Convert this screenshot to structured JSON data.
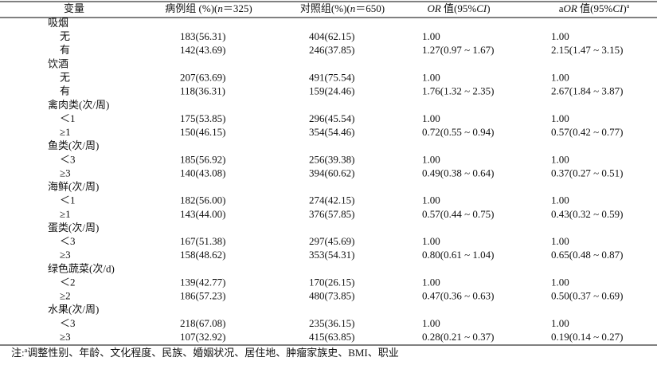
{
  "table": {
    "header": [
      "变量",
      [
        "病例组 (%)(",
        "n",
        "＝325)"
      ],
      [
        "对照组(%)(",
        "n",
        "＝650)"
      ],
      [
        "OR",
        " 值(95%",
        "CI",
        ")"
      ],
      [
        "a",
        "OR",
        " 值(95%",
        "CI",
        ")",
        "a"
      ]
    ],
    "groups": [
      {
        "label": "吸烟",
        "rows": [
          [
            "无",
            "183(56.31)",
            "404(62.15)",
            "1.00",
            "1.00"
          ],
          [
            "有",
            "142(43.69)",
            "246(37.85)",
            "1.27(0.97 ~ 1.67)",
            "2.15(1.47 ~ 3.15)"
          ]
        ]
      },
      {
        "label": "饮酒",
        "rows": [
          [
            "无",
            "207(63.69)",
            "491(75.54)",
            "1.00",
            "1.00"
          ],
          [
            "有",
            "118(36.31)",
            "159(24.46)",
            "1.76(1.32 ~ 2.35)",
            "2.67(1.84 ~ 3.87)"
          ]
        ]
      },
      {
        "label": "禽肉类(次/周)",
        "rows": [
          [
            "＜1",
            "175(53.85)",
            "296(45.54)",
            "1.00",
            "1.00"
          ],
          [
            "≥1",
            "150(46.15)",
            "354(54.46)",
            "0.72(0.55 ~ 0.94)",
            "0.57(0.42 ~ 0.77)"
          ]
        ]
      },
      {
        "label": "鱼类(次/周)",
        "rows": [
          [
            "＜3",
            "185(56.92)",
            "256(39.38)",
            "1.00",
            "1.00"
          ],
          [
            "≥3",
            "140(43.08)",
            "394(60.62)",
            "0.49(0.38 ~ 0.64)",
            "0.37(0.27 ~ 0.51)"
          ]
        ]
      },
      {
        "label": "海鲜(次/周)",
        "rows": [
          [
            "＜1",
            "182(56.00)",
            "274(42.15)",
            "1.00",
            "1.00"
          ],
          [
            "≥1",
            "143(44.00)",
            "376(57.85)",
            "0.57(0.44 ~ 0.75)",
            "0.43(0.32 ~ 0.59)"
          ]
        ]
      },
      {
        "label": "蛋类(次/周)",
        "rows": [
          [
            "＜3",
            "167(51.38)",
            "297(45.69)",
            "1.00",
            "1.00"
          ],
          [
            "≥3",
            "158(48.62)",
            "353(54.31)",
            "0.80(0.61 ~ 1.04)",
            "0.65(0.48 ~ 0.87)"
          ]
        ]
      },
      {
        "label": "绿色蔬菜(次/d)",
        "rows": [
          [
            "＜2",
            "139(42.77)",
            "170(26.15)",
            "1.00",
            "1.00"
          ],
          [
            "≥2",
            "186(57.23)",
            "480(73.85)",
            "0.47(0.36 ~ 0.63)",
            "0.50(0.37 ~ 0.69)"
          ]
        ]
      },
      {
        "label": "水果(次/周)",
        "rows": [
          [
            "＜3",
            "218(67.08)",
            "235(36.15)",
            "1.00",
            "1.00"
          ],
          [
            "≥3",
            "107(32.92)",
            "415(63.85)",
            "0.28(0.21 ~ 0.37)",
            "0.19(0.14 ~ 0.27)"
          ]
        ]
      }
    ],
    "note": [
      "注:",
      "a",
      "调整性别、年龄、文化程度、民族、婚姻状况、居住地、肿瘤家族史、BMI、职业"
    ]
  }
}
